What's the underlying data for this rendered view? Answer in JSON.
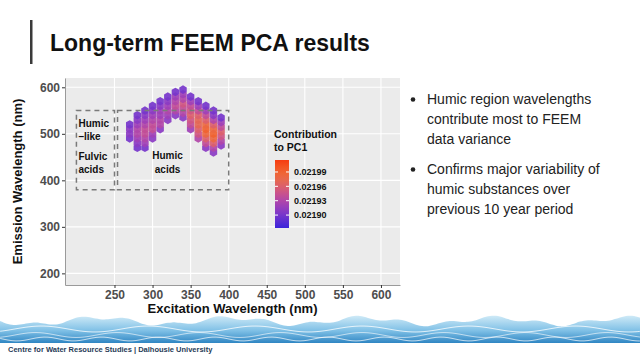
{
  "slide": {
    "title": "Long-term FEEM PCA results",
    "bullets": [
      [
        "Humic region wavelengths",
        "contribute most to FEEM",
        "data variance"
      ],
      [
        "Confirms major variability of",
        "humic substances over",
        "previous 10 year period"
      ]
    ],
    "footer": "Centre for Water Resource Studies | Dalhousie University"
  },
  "chart_data": {
    "type": "scatter",
    "x_label": "Excitation Wavelength (nm)",
    "y_label": "Emission Wavelength (nm)",
    "xlim": [
      185,
      625
    ],
    "xticks": [
      250,
      300,
      350,
      400,
      450,
      500,
      550,
      600
    ],
    "ylim": [
      175,
      620
    ],
    "yticks": [
      200,
      300,
      400,
      500,
      600
    ],
    "grid": true,
    "marker": "hexagon",
    "x": [
      270,
      270,
      270,
      270,
      280,
      280,
      280,
      280,
      280,
      280,
      280,
      280,
      290,
      290,
      290,
      290,
      290,
      290,
      290,
      290,
      290,
      300,
      300,
      300,
      300,
      300,
      300,
      300,
      300,
      310,
      310,
      310,
      310,
      310,
      310,
      310,
      320,
      320,
      320,
      320,
      320,
      320,
      330,
      330,
      330,
      330,
      330,
      330,
      340,
      340,
      340,
      340,
      340,
      340,
      340,
      350,
      350,
      350,
      350,
      350,
      350,
      350,
      350,
      360,
      360,
      360,
      360,
      360,
      360,
      360,
      360,
      360,
      370,
      370,
      370,
      370,
      370,
      370,
      370,
      370,
      370,
      370,
      380,
      380,
      380,
      380,
      380,
      380,
      380,
      380,
      380,
      380,
      390,
      390,
      390,
      390,
      390,
      390,
      390
    ],
    "values": [
      490,
      500,
      510,
      520,
      470,
      480,
      490,
      500,
      510,
      520,
      530,
      540,
      470,
      480,
      490,
      500,
      510,
      520,
      530,
      540,
      550,
      490,
      500,
      510,
      520,
      530,
      540,
      550,
      560,
      510,
      520,
      530,
      540,
      550,
      560,
      570,
      530,
      540,
      550,
      560,
      570,
      580,
      540,
      550,
      560,
      570,
      580,
      590,
      535,
      545,
      555,
      565,
      575,
      585,
      595,
      510,
      520,
      530,
      540,
      550,
      560,
      570,
      580,
      490,
      500,
      510,
      520,
      530,
      540,
      550,
      560,
      570,
      470,
      480,
      490,
      500,
      510,
      520,
      530,
      540,
      550,
      560,
      460,
      470,
      480,
      490,
      500,
      510,
      520,
      530,
      540,
      550,
      475,
      485,
      495,
      505,
      515,
      525,
      535
    ],
    "contribution": [
      0.0219,
      0.02191,
      0.02191,
      0.0219,
      0.0219,
      0.02191,
      0.02192,
      0.02193,
      0.02193,
      0.02192,
      0.02191,
      0.0219,
      0.0219,
      0.02192,
      0.02193,
      0.02194,
      0.02194,
      0.02193,
      0.02192,
      0.02191,
      0.0219,
      0.02191,
      0.02192,
      0.02194,
      0.02194,
      0.02193,
      0.02192,
      0.02191,
      0.0219,
      0.02191,
      0.02193,
      0.02193,
      0.02192,
      0.02192,
      0.02191,
      0.0219,
      0.02191,
      0.02192,
      0.02193,
      0.02192,
      0.02191,
      0.0219,
      0.02191,
      0.02193,
      0.02194,
      0.02193,
      0.02192,
      0.0219,
      0.02191,
      0.02193,
      0.02194,
      0.02195,
      0.02193,
      0.02192,
      0.0219,
      0.02192,
      0.02194,
      0.02195,
      0.02196,
      0.02195,
      0.02194,
      0.02192,
      0.0219,
      0.02193,
      0.02195,
      0.02196,
      0.02197,
      0.02197,
      0.02196,
      0.02194,
      0.02192,
      0.0219,
      0.02191,
      0.02194,
      0.02196,
      0.02198,
      0.02199,
      0.02198,
      0.02196,
      0.02194,
      0.02192,
      0.0219,
      0.02191,
      0.02193,
      0.02196,
      0.02198,
      0.02199,
      0.02198,
      0.02196,
      0.02193,
      0.02191,
      0.0219,
      0.02191,
      0.02193,
      0.02195,
      0.02196,
      0.02194,
      0.02192,
      0.0219
    ],
    "colorbar": {
      "title": [
        "Contribution",
        "to PC1"
      ],
      "range": [
        0.021873,
        0.022015
      ],
      "ticks": [
        {
          "value": 0.0219,
          "label": "0.02190"
        },
        0.02193,
        0.02196,
        0.02199
      ]
    },
    "regions": [
      {
        "label": [
          "Humic",
          "–like",
          "Fulvic",
          "acids"
        ],
        "xlim": [
          200,
          250
        ],
        "ylim": [
          380,
          550
        ]
      },
      {
        "label": [
          "Humic",
          "acids"
        ],
        "xlim": [
          254,
          400
        ],
        "ylim": [
          380,
          550
        ]
      }
    ]
  }
}
